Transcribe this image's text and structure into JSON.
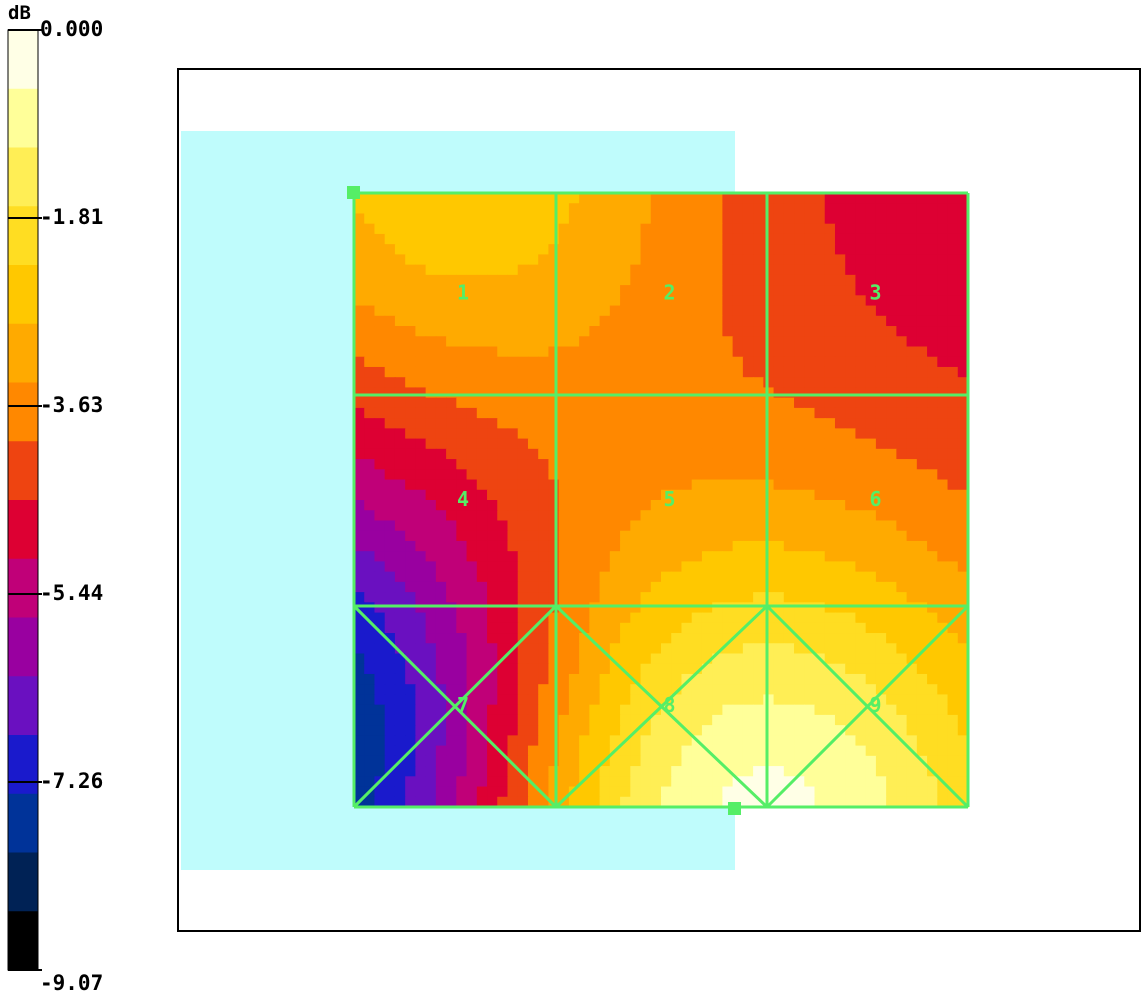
{
  "chart_data": {
    "type": "heatmap",
    "legend": {
      "unit": "dB",
      "ticks": [
        "0.000",
        "-1.81",
        "-3.63",
        "-5.44",
        "-7.26",
        "-9.07"
      ],
      "min": -9.07,
      "max": 0.0,
      "colors": [
        "#ffffe6",
        "#ffff99",
        "#ffee55",
        "#ffdd22",
        "#ffc800",
        "#ffaa00",
        "#ff8800",
        "#ee4411",
        "#dd0033",
        "#c00078",
        "#9900a0",
        "#6a10c0",
        "#1a1acc",
        "#003399",
        "#002255",
        "#000000"
      ]
    },
    "panels": [
      {
        "id": "1",
        "label": "1"
      },
      {
        "id": "2",
        "label": "2"
      },
      {
        "id": "3",
        "label": "3"
      },
      {
        "id": "4",
        "label": "4"
      },
      {
        "id": "5",
        "label": "5"
      },
      {
        "id": "6",
        "label": "6"
      },
      {
        "id": "7",
        "label": "7"
      },
      {
        "id": "8",
        "label": "8"
      },
      {
        "id": "9",
        "label": "9"
      }
    ],
    "field": {
      "peaks": [
        {
          "x": 0.17,
          "y": -0.05,
          "value": -2.4,
          "sigma": 0.3
        },
        {
          "x": 0.62,
          "y": 1.05,
          "value": -0.1,
          "sigma": 0.38
        }
      ],
      "troughs": [
        {
          "x": -0.05,
          "y": 0.92,
          "value": -9.07,
          "sigma": 0.3
        }
      ],
      "base": -5.0
    },
    "colors": {
      "grid": "#55ee66",
      "background": "#bffcfc",
      "frame": "#000000"
    }
  }
}
